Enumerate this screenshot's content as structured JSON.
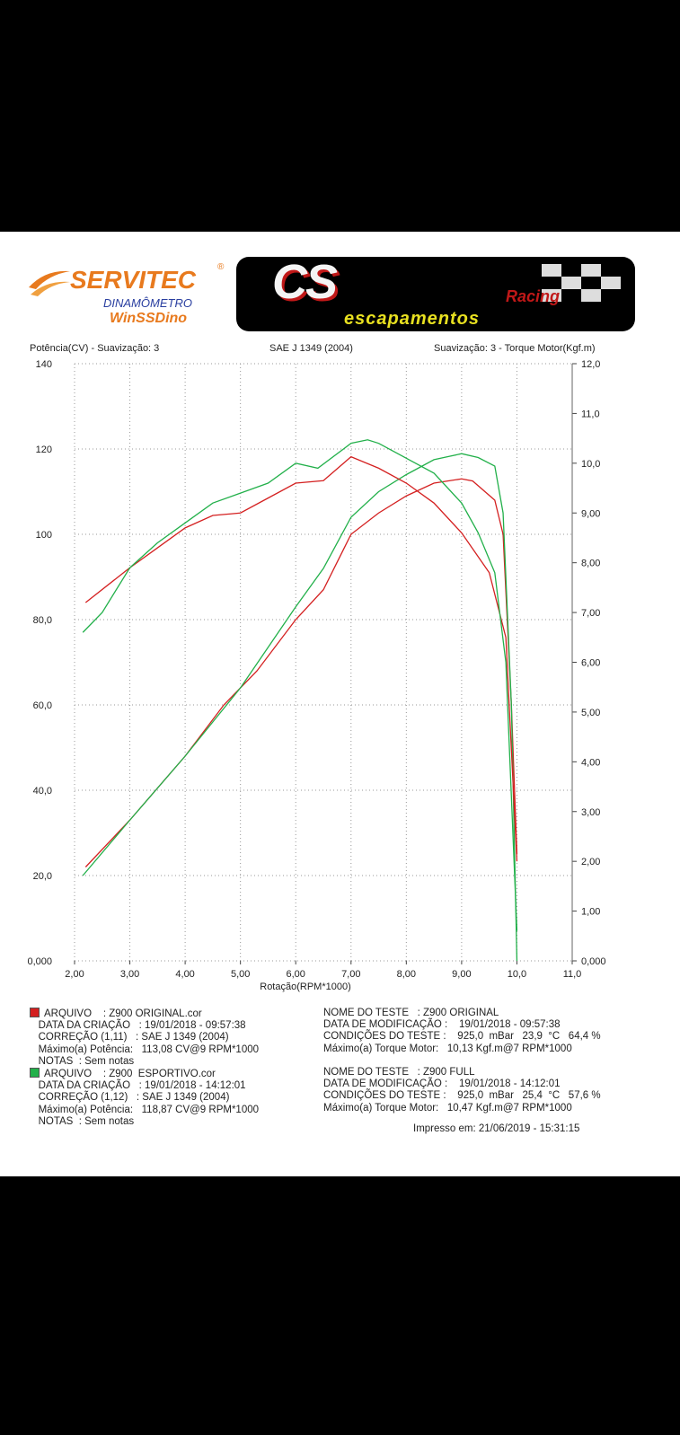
{
  "logos": {
    "servitec": "SERVITEC",
    "servitec_sub": "DINAMÔMETRO",
    "servitec_app": "WinSSDino",
    "cs": "CS",
    "cs_racing": "Racing",
    "cs_sub": "escapamentos"
  },
  "header": {
    "left": "Potência(CV) - Suavização: 3",
    "center": "SAE J 1349 (2004)",
    "right": "Suavização: 3 - Torque Motor(Kgf.m)"
  },
  "colors": {
    "original": "#d42020",
    "esportivo": "#22b04a"
  },
  "chart_data": {
    "type": "line",
    "xlabel": "Rotação(RPM*1000)",
    "ylabel": "Potência(CV)",
    "y2label": "Torque Motor(Kgf.m)",
    "xlim": [
      2,
      11
    ],
    "ylim": [
      0,
      140
    ],
    "y2lim": [
      0,
      12
    ],
    "grid": true,
    "x_ticks": [
      "2,00",
      "3,00",
      "4,00",
      "5,00",
      "6,00",
      "7,00",
      "8,00",
      "9,00",
      "10,0",
      "11,0"
    ],
    "y_ticks": [
      "0,000",
      "20,0",
      "40,0",
      "60,0",
      "80,0",
      "100",
      "120",
      "140"
    ],
    "y2_ticks": [
      "0,000",
      "1,00",
      "2,00",
      "3,00",
      "4,00",
      "5,00",
      "6,00",
      "7,00",
      "8,00",
      "9,00",
      "10,0",
      "11,0",
      "12,0"
    ],
    "series": [
      {
        "name": "Z900 ORIGINAL",
        "axis": "left",
        "color": "#d42020",
        "x": [
          2.2,
          3.0,
          4.0,
          4.7,
          5.3,
          6.0,
          6.5,
          7.0,
          7.5,
          8.0,
          8.5,
          9.0,
          9.2,
          9.6,
          9.75,
          9.9,
          10.0
        ],
        "y": [
          22,
          33,
          48,
          60,
          68,
          80,
          87,
          100,
          105,
          109,
          112,
          113,
          112.5,
          108,
          100,
          60,
          25
        ]
      },
      {
        "name": "Z900 ESPORTIVO",
        "axis": "left",
        "color": "#22b04a",
        "x": [
          2.15,
          3.0,
          4.0,
          5.0,
          6.0,
          6.5,
          7.0,
          7.5,
          8.0,
          8.5,
          9.0,
          9.3,
          9.6,
          9.75,
          9.9,
          10.0
        ],
        "y": [
          20,
          33,
          48,
          64,
          83,
          92,
          104,
          110,
          114,
          117.5,
          118.9,
          118,
          116,
          105,
          60,
          0
        ]
      },
      {
        "name": "Z900 ORIGINAL",
        "axis": "right",
        "color": "#d42020",
        "x": [
          2.2,
          3.0,
          3.5,
          4.0,
          4.5,
          5.0,
          5.5,
          6.0,
          6.5,
          7.0,
          7.5,
          8.0,
          8.5,
          9.0,
          9.5,
          9.8,
          10.0
        ],
        "y": [
          7.2,
          7.9,
          8.3,
          8.7,
          8.95,
          9.0,
          9.3,
          9.6,
          9.65,
          10.13,
          9.9,
          9.6,
          9.2,
          8.6,
          7.8,
          6.5,
          2.0
        ]
      },
      {
        "name": "Z900 ESPORTIVO",
        "axis": "right",
        "color": "#22b04a",
        "x": [
          2.15,
          2.5,
          3.0,
          3.5,
          4.0,
          4.5,
          5.0,
          5.5,
          6.0,
          6.4,
          7.0,
          7.3,
          7.5,
          8.0,
          8.5,
          9.0,
          9.3,
          9.6,
          9.8,
          10.0
        ],
        "y": [
          6.6,
          7.0,
          7.9,
          8.4,
          8.8,
          9.2,
          9.4,
          9.6,
          10.0,
          9.9,
          10.4,
          10.47,
          10.4,
          10.1,
          9.8,
          9.2,
          8.6,
          7.8,
          6.0,
          0.6
        ]
      }
    ]
  },
  "legend": [
    {
      "arquivo": "ARQUIVO    : Z900 ORIGINAL.cor",
      "criacao": "DATA DA CRIAÇÃO   : 19/01/2018 - 09:57:38",
      "correcao": "CORREÇÃO (1,11)   : SAE J 1349 (2004)",
      "max_pot": "Máximo(a) Potência:   113,08 CV@9 RPM*1000",
      "notas": "NOTAS  : Sem notas",
      "nome": "NOME DO TESTE   : Z900 ORIGINAL",
      "modif": "DATA DE MODIFICAÇÃO :    19/01/2018 - 09:57:38",
      "cond": "CONDIÇÕES DO TESTE :    925,0  mBar   23,9  °C   64,4 %",
      "max_torque": "Máximo(a) Torque Motor:   10,13 Kgf.m@7 RPM*1000"
    },
    {
      "arquivo": "ARQUIVO    : Z900  ESPORTIVO.cor",
      "criacao": "DATA DA CRIAÇÃO   : 19/01/2018 - 14:12:01",
      "correcao": "CORREÇÃO (1,12)   : SAE J 1349 (2004)",
      "max_pot": "Máximo(a) Potência:   118,87 CV@9 RPM*1000",
      "notas": "NOTAS  : Sem notas",
      "nome": "NOME DO TESTE   : Z900 FULL",
      "modif": "DATA DE MODIFICAÇÃO :    19/01/2018 - 14:12:01",
      "cond": "CONDIÇÕES DO TESTE :    925,0  mBar   25,4  °C   57,6 %",
      "max_torque": "Máximo(a) Torque Motor:   10,47 Kgf.m@7 RPM*1000"
    }
  ],
  "printed": "Impresso em: 21/06/2019 - 15:31:15"
}
